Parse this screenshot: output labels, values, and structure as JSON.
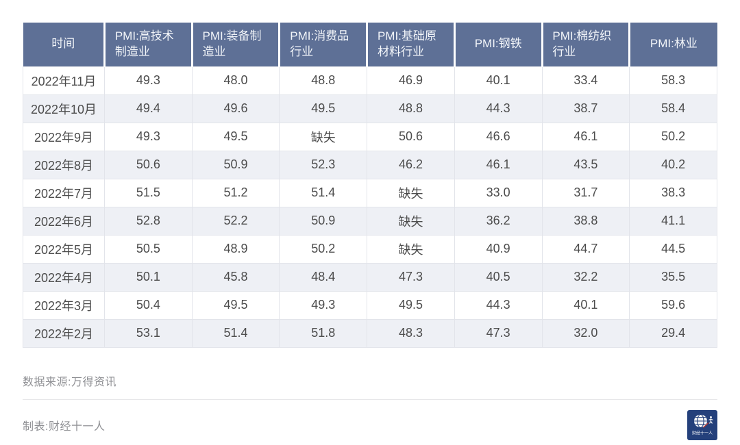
{
  "chart_data": {
    "type": "table",
    "columns": [
      "时间",
      "PMI:高技术制造业",
      "PMI:装备制造业",
      "PMI:消费品行业",
      "PMI:基础原材料行业",
      "PMI:钢铁",
      "PMI:棉纺织行业",
      "PMI:林业"
    ],
    "rows": [
      [
        "2022年11月",
        "49.3",
        "48.0",
        "48.8",
        "46.9",
        "40.1",
        "33.4",
        "58.3"
      ],
      [
        "2022年10月",
        "49.4",
        "49.6",
        "49.5",
        "48.8",
        "44.3",
        "38.7",
        "58.4"
      ],
      [
        "2022年9月",
        "49.3",
        "49.5",
        "缺失",
        "50.6",
        "46.6",
        "46.1",
        "50.2"
      ],
      [
        "2022年8月",
        "50.6",
        "50.9",
        "52.3",
        "46.2",
        "46.1",
        "43.5",
        "40.2"
      ],
      [
        "2022年7月",
        "51.5",
        "51.2",
        "51.4",
        "缺失",
        "33.0",
        "31.7",
        "38.3"
      ],
      [
        "2022年6月",
        "52.8",
        "52.2",
        "50.9",
        "缺失",
        "36.2",
        "38.8",
        "41.1"
      ],
      [
        "2022年5月",
        "50.5",
        "48.9",
        "50.2",
        "缺失",
        "40.9",
        "44.7",
        "44.5"
      ],
      [
        "2022年4月",
        "50.1",
        "45.8",
        "48.4",
        "47.3",
        "40.5",
        "32.2",
        "35.5"
      ],
      [
        "2022年3月",
        "50.4",
        "49.5",
        "49.3",
        "49.5",
        "44.3",
        "40.1",
        "59.6"
      ],
      [
        "2022年2月",
        "53.1",
        "51.4",
        "51.8",
        "48.3",
        "47.3",
        "32.0",
        "29.4"
      ]
    ],
    "missing_value_label": "缺失",
    "layout_hints": {
      "striped_rows": "even rows shaded",
      "header_position": "top"
    }
  },
  "footer": {
    "source": "数据来源:万得资讯",
    "credit": "制表:财经十一人",
    "logo_text": "财经十一人"
  },
  "colors": {
    "header_bg": "#5e7096",
    "header_text": "#f2f5f9",
    "stripe_bg": "#eef0f5",
    "body_text": "#4c4c4c",
    "cell_border": "#e2e4ea",
    "footer_text": "#8f9094",
    "divider": "#e7e7e9",
    "logo_bg": "#24407b",
    "logo_accent_red": "#b5342f"
  }
}
